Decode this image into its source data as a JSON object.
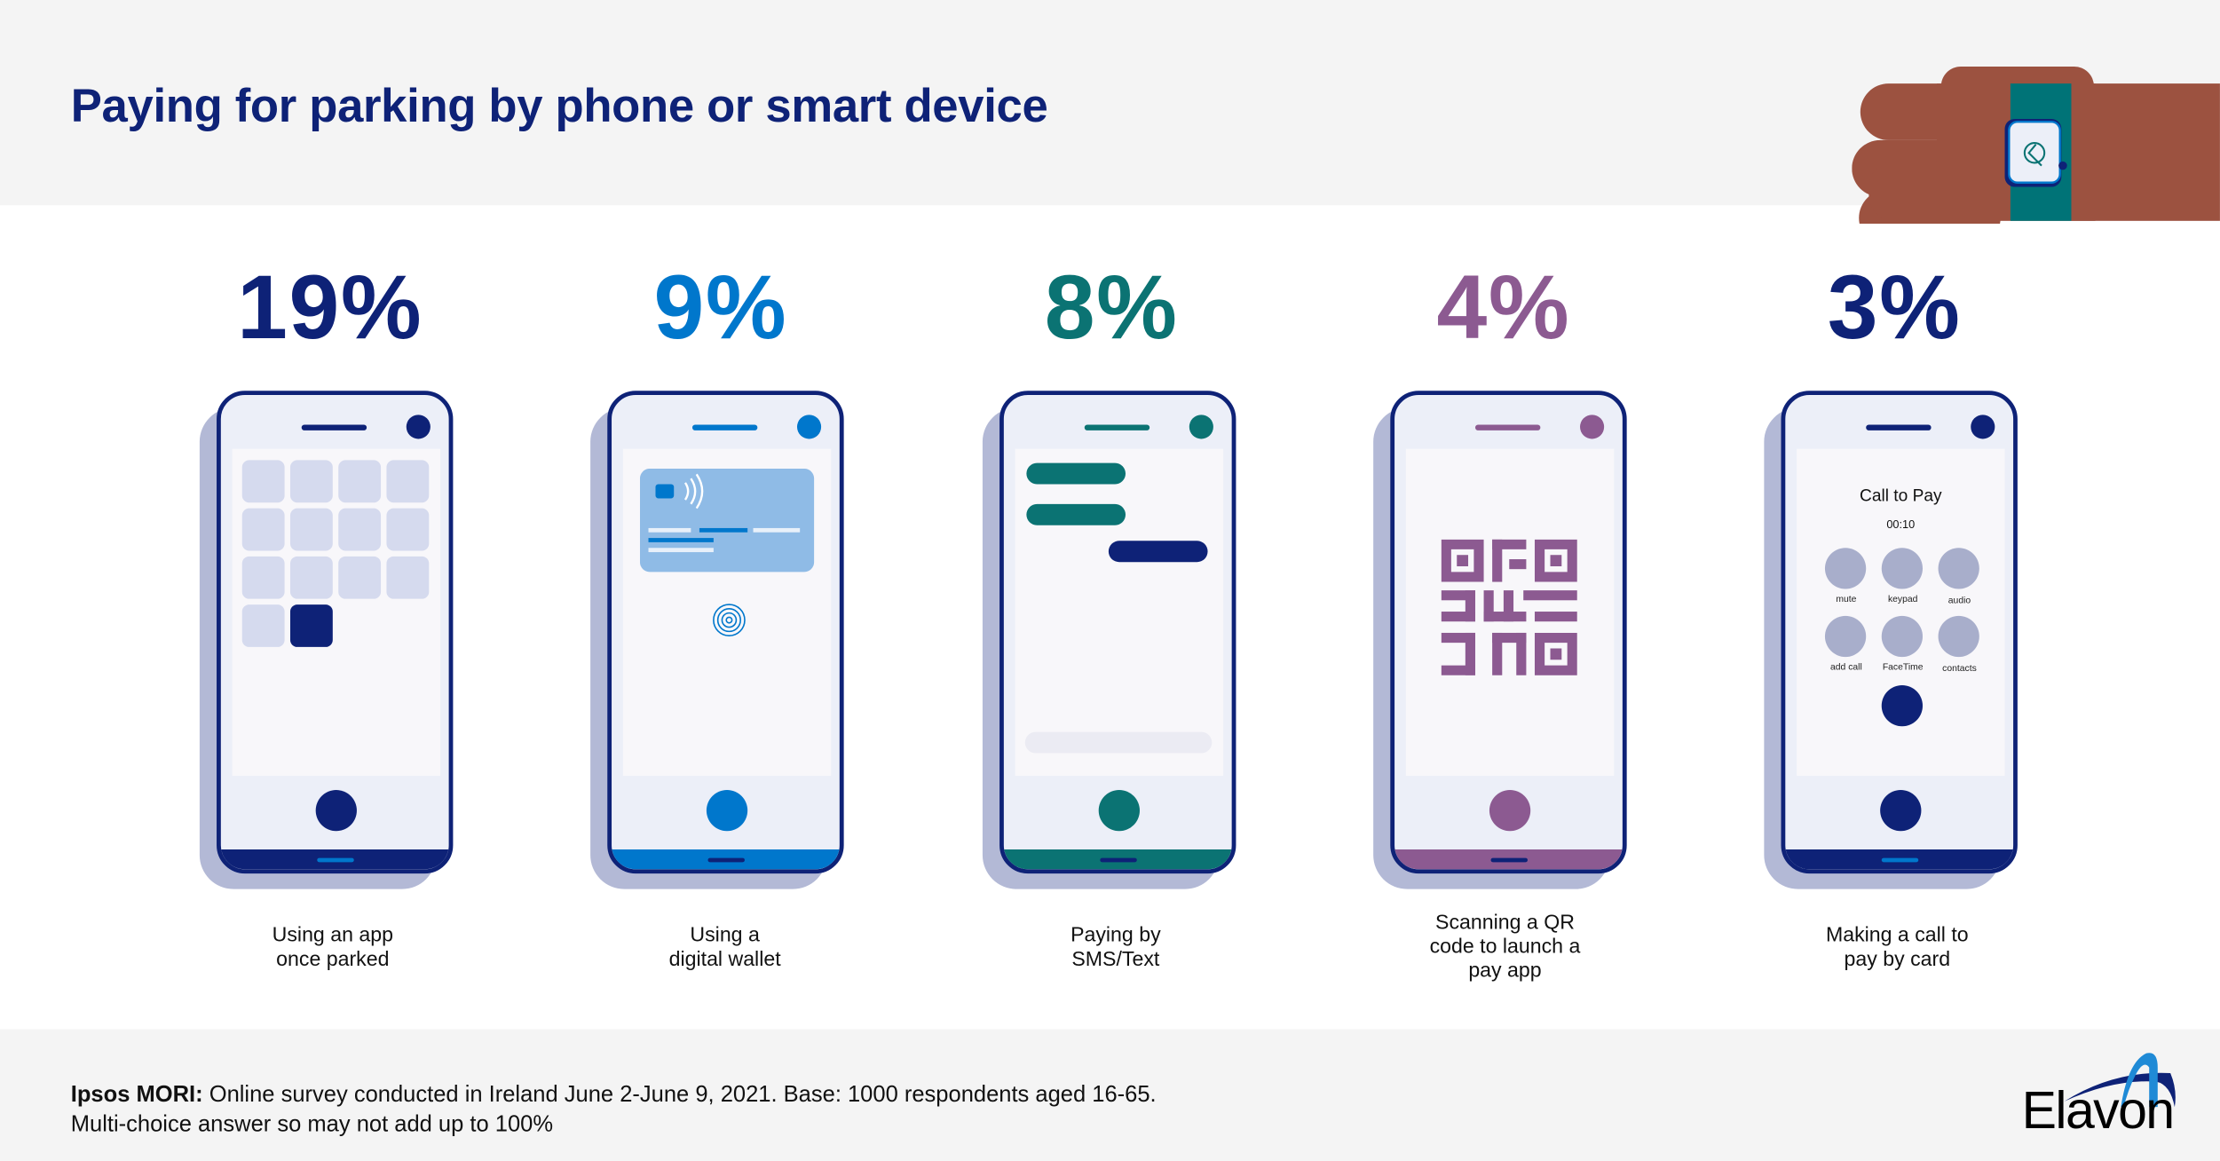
{
  "title": "Paying for parking by phone or smart device",
  "colors": {
    "navy": "#0e2277",
    "blue": "#0077cc",
    "teal": "#0b7373",
    "purple": "#8c5a91",
    "skin": "#9c5240",
    "band": "#f4f4f4"
  },
  "items": [
    {
      "percent": "19%",
      "value": 19,
      "label_line1": "Using an app",
      "label_line2": "once parked",
      "color": "#0e2277"
    },
    {
      "percent": "9%",
      "value": 9,
      "label_line1": "Using a",
      "label_line2": "digital wallet",
      "color": "#0077cc"
    },
    {
      "percent": "8%",
      "value": 8,
      "label_line1": "Paying by",
      "label_line2": "SMS/Text",
      "color": "#0b7373"
    },
    {
      "percent": "4%",
      "value": 4,
      "label_line1": "Scanning a QR",
      "label_line2": "code to launch a",
      "label_line3": "pay app",
      "color": "#8c5a91"
    },
    {
      "percent": "3%",
      "value": 3,
      "label_line1": "Making a call to",
      "label_line2": "pay by card",
      "color": "#0e2277"
    }
  ],
  "call_screen": {
    "title": "Call to Pay",
    "timer": "00:10",
    "buttons": [
      "mute",
      "keypad",
      "audio",
      "add call",
      "FaceTime",
      "contacts"
    ]
  },
  "footer": {
    "source_bold": "Ipsos MORI:",
    "source_text": " Online survey conducted in Ireland June 2-June 9, 2021. Base: 1000 respondents aged 16-65.",
    "note": "Multi-choice answer so may not add up to 100%"
  },
  "logo": {
    "text": "Elavon"
  }
}
